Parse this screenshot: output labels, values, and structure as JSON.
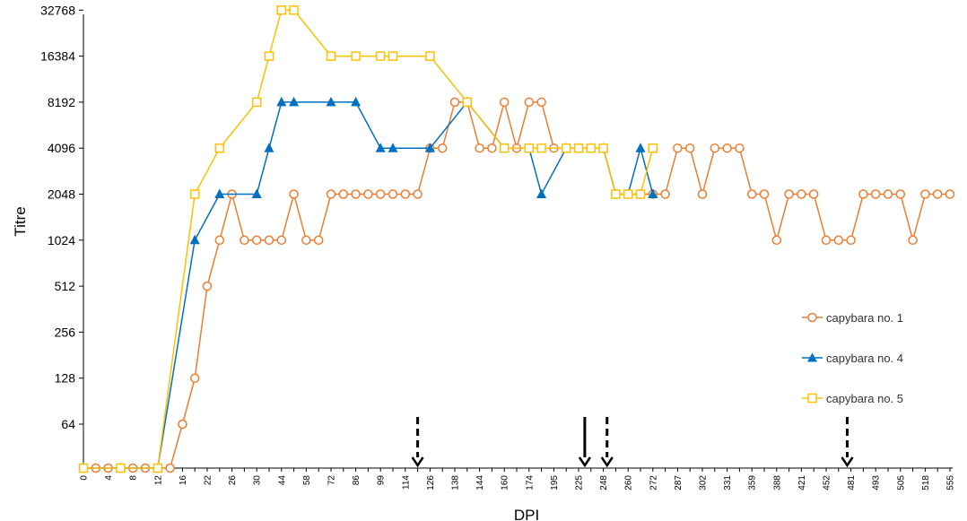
{
  "chart_data": {
    "type": "line",
    "ylabel": "Titre",
    "xlabel": "DPI",
    "y_scale": "log2",
    "y_ticks": [
      "64",
      "128",
      "256",
      "512",
      "1024",
      "2048",
      "4096",
      "8192",
      "16384",
      "32768"
    ],
    "x_ticks": [
      "0",
      "4",
      "8",
      "12",
      "16",
      "22",
      "26",
      "30",
      "44",
      "58",
      "72",
      "86",
      "99",
      "114",
      "126",
      "138",
      "144",
      "160",
      "174",
      "195",
      "225",
      "248",
      "260",
      "272",
      "287",
      "302",
      "331",
      "359",
      "388",
      "421",
      "452",
      "481",
      "493",
      "505",
      "518",
      "555"
    ],
    "x_positions": [
      0,
      2,
      4,
      6,
      8,
      10,
      12,
      14,
      16,
      18,
      20,
      22,
      24,
      26,
      28,
      30,
      32,
      34,
      36,
      38,
      40,
      42,
      44,
      46,
      48,
      50,
      52,
      54,
      56,
      58,
      60,
      62,
      64,
      66,
      68,
      70
    ],
    "arrows": [
      {
        "style": "dashed",
        "position": 27
      },
      {
        "style": "solid",
        "position": 40.5
      },
      {
        "style": "dashed",
        "position": 42.3
      },
      {
        "style": "dashed",
        "position": 61.7
      }
    ],
    "series": [
      {
        "name": "capybara no. 1",
        "color": "#ED7D31",
        "marker": "circle",
        "points": [
          [
            0,
            0
          ],
          [
            1,
            0
          ],
          [
            2,
            0
          ],
          [
            3,
            0
          ],
          [
            4,
            0
          ],
          [
            5,
            0
          ],
          [
            6,
            0
          ],
          [
            7,
            0
          ],
          [
            8,
            64
          ],
          [
            9,
            128
          ],
          [
            10,
            512
          ],
          [
            11,
            1024
          ],
          [
            12,
            2048
          ],
          [
            13,
            1024
          ],
          [
            14,
            1024
          ],
          [
            15,
            1024
          ],
          [
            16,
            1024
          ],
          [
            17,
            2048
          ],
          [
            18,
            1024
          ],
          [
            19,
            1024
          ],
          [
            20,
            2048
          ],
          [
            21,
            2048
          ],
          [
            22,
            2048
          ],
          [
            23,
            2048
          ],
          [
            24,
            2048
          ],
          [
            25,
            2048
          ],
          [
            26,
            2048
          ],
          [
            27,
            2048
          ],
          [
            28,
            4096
          ],
          [
            29,
            4096
          ],
          [
            30,
            8192
          ],
          [
            31,
            8192
          ],
          [
            32,
            4096
          ],
          [
            33,
            4096
          ],
          [
            34,
            8192
          ],
          [
            35,
            4096
          ],
          [
            36,
            8192
          ],
          [
            37,
            8192
          ],
          [
            38,
            4096
          ],
          [
            39,
            4096
          ],
          [
            40,
            4096
          ],
          [
            41,
            4096
          ],
          [
            42,
            4096
          ],
          [
            43,
            2048
          ],
          [
            44,
            2048
          ],
          [
            45,
            2048
          ],
          [
            46,
            2048
          ],
          [
            47,
            2048
          ],
          [
            48,
            4096
          ],
          [
            49,
            4096
          ],
          [
            50,
            2048
          ],
          [
            51,
            4096
          ],
          [
            52,
            4096
          ],
          [
            53,
            4096
          ],
          [
            54,
            2048
          ],
          [
            55,
            2048
          ],
          [
            56,
            1024
          ],
          [
            57,
            2048
          ],
          [
            58,
            2048
          ],
          [
            59,
            2048
          ],
          [
            60,
            1024
          ],
          [
            61,
            1024
          ],
          [
            62,
            1024
          ],
          [
            63,
            2048
          ],
          [
            64,
            2048
          ],
          [
            65,
            2048
          ],
          [
            66,
            2048
          ],
          [
            67,
            1024
          ],
          [
            68,
            2048
          ],
          [
            69,
            2048
          ],
          [
            70,
            2048
          ]
        ]
      },
      {
        "name": "capybara no. 4",
        "color": "#0070C0",
        "marker": "triangle",
        "points": [
          [
            0,
            0
          ],
          [
            3,
            0
          ],
          [
            6,
            0
          ],
          [
            9,
            1024
          ],
          [
            11,
            2048
          ],
          [
            14,
            2048
          ],
          [
            15,
            4096
          ],
          [
            16,
            8192
          ],
          [
            17,
            8192
          ],
          [
            20,
            8192
          ],
          [
            22,
            8192
          ],
          [
            24,
            4096
          ],
          [
            25,
            4096
          ],
          [
            28,
            4096
          ],
          [
            31,
            8192
          ],
          [
            34,
            4096
          ],
          [
            36,
            4096
          ],
          [
            37,
            2048
          ],
          [
            39,
            4096
          ],
          [
            40,
            4096
          ],
          [
            41,
            4096
          ],
          [
            42,
            4096
          ],
          [
            43,
            2048
          ],
          [
            44,
            2048
          ],
          [
            45,
            4096
          ],
          [
            46,
            2048
          ]
        ]
      },
      {
        "name": "capybara no. 5",
        "color": "#FFC000",
        "marker": "square",
        "points": [
          [
            0,
            0
          ],
          [
            3,
            0
          ],
          [
            6,
            0
          ],
          [
            9,
            2048
          ],
          [
            11,
            4096
          ],
          [
            14,
            8192
          ],
          [
            15,
            16384
          ],
          [
            16,
            32768
          ],
          [
            17,
            32768
          ],
          [
            20,
            16384
          ],
          [
            22,
            16384
          ],
          [
            24,
            16384
          ],
          [
            25,
            16384
          ],
          [
            28,
            16384
          ],
          [
            31,
            8192
          ],
          [
            34,
            4096
          ],
          [
            36,
            4096
          ],
          [
            37,
            4096
          ],
          [
            39,
            4096
          ],
          [
            40,
            4096
          ],
          [
            41,
            4096
          ],
          [
            42,
            4096
          ],
          [
            43,
            2048
          ],
          [
            44,
            2048
          ],
          [
            45,
            2048
          ],
          [
            46,
            4096
          ]
        ]
      }
    ],
    "legend_position": "right"
  }
}
